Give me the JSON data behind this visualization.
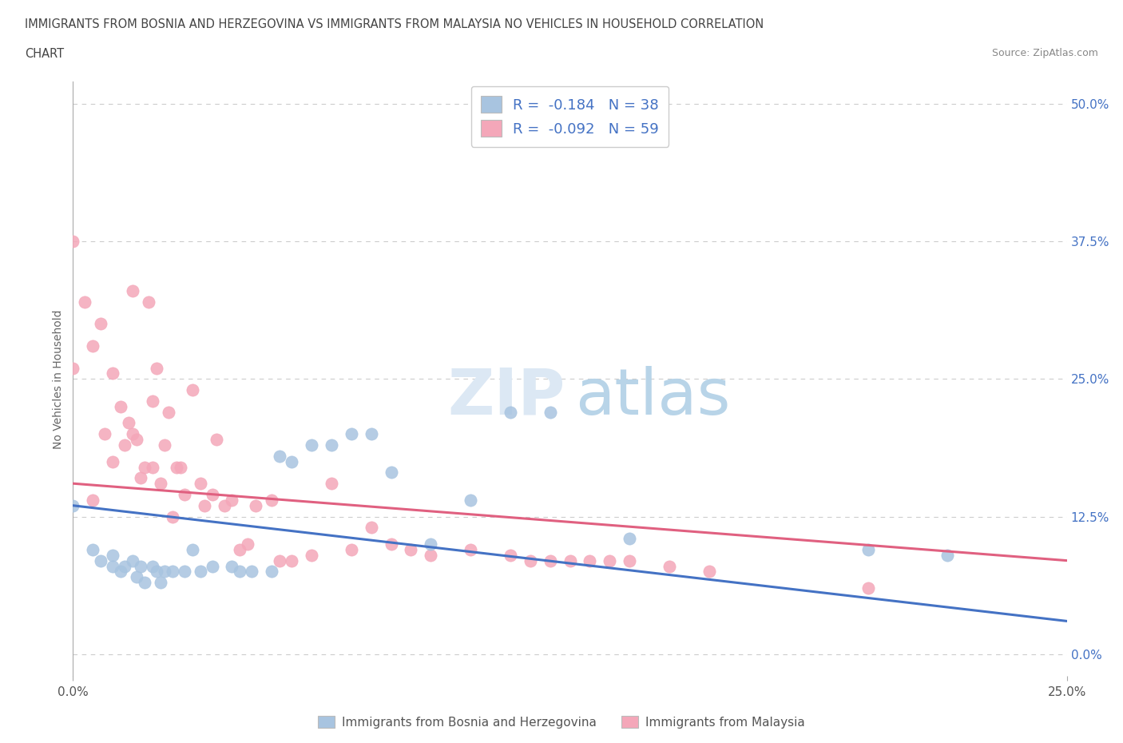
{
  "title_line1": "IMMIGRANTS FROM BOSNIA AND HERZEGOVINA VS IMMIGRANTS FROM MALAYSIA NO VEHICLES IN HOUSEHOLD CORRELATION",
  "title_line2": "CHART",
  "source": "Source: ZipAtlas.com",
  "ylabel": "No Vehicles in Household",
  "xlim": [
    0.0,
    0.25
  ],
  "ylim": [
    -0.02,
    0.52
  ],
  "y_ticks_right": [
    0.0,
    0.125,
    0.25,
    0.375,
    0.5
  ],
  "bosnia_color": "#a8c4e0",
  "malaysia_color": "#f4a7b9",
  "bosnia_line_color": "#4472c4",
  "malaysia_line_color": "#e06080",
  "R_bosnia": -0.184,
  "N_bosnia": 38,
  "R_malaysia": -0.092,
  "N_malaysia": 59,
  "watermark_color": "#dce8f4",
  "grid_color": "#cccccc",
  "bosnia_scatter_x": [
    0.0,
    0.005,
    0.007,
    0.01,
    0.01,
    0.012,
    0.013,
    0.015,
    0.016,
    0.017,
    0.018,
    0.02,
    0.021,
    0.022,
    0.023,
    0.025,
    0.028,
    0.03,
    0.032,
    0.035,
    0.04,
    0.042,
    0.045,
    0.05,
    0.052,
    0.055,
    0.06,
    0.065,
    0.07,
    0.075,
    0.08,
    0.09,
    0.1,
    0.11,
    0.12,
    0.14,
    0.2,
    0.22
  ],
  "bosnia_scatter_y": [
    0.135,
    0.095,
    0.085,
    0.09,
    0.08,
    0.075,
    0.08,
    0.085,
    0.07,
    0.08,
    0.065,
    0.08,
    0.075,
    0.065,
    0.075,
    0.075,
    0.075,
    0.095,
    0.075,
    0.08,
    0.08,
    0.075,
    0.075,
    0.075,
    0.18,
    0.175,
    0.19,
    0.19,
    0.2,
    0.2,
    0.165,
    0.1,
    0.14,
    0.22,
    0.22,
    0.105,
    0.095,
    0.09
  ],
  "malaysia_scatter_x": [
    0.0,
    0.0,
    0.003,
    0.005,
    0.005,
    0.007,
    0.008,
    0.01,
    0.01,
    0.012,
    0.013,
    0.014,
    0.015,
    0.015,
    0.016,
    0.017,
    0.018,
    0.019,
    0.02,
    0.02,
    0.021,
    0.022,
    0.023,
    0.024,
    0.025,
    0.026,
    0.027,
    0.028,
    0.03,
    0.032,
    0.033,
    0.035,
    0.036,
    0.038,
    0.04,
    0.042,
    0.044,
    0.046,
    0.05,
    0.052,
    0.055,
    0.06,
    0.065,
    0.07,
    0.075,
    0.08,
    0.085,
    0.09,
    0.1,
    0.11,
    0.115,
    0.12,
    0.125,
    0.13,
    0.135,
    0.14,
    0.15,
    0.16,
    0.2
  ],
  "malaysia_scatter_y": [
    0.375,
    0.26,
    0.32,
    0.14,
    0.28,
    0.3,
    0.2,
    0.255,
    0.175,
    0.225,
    0.19,
    0.21,
    0.33,
    0.2,
    0.195,
    0.16,
    0.17,
    0.32,
    0.17,
    0.23,
    0.26,
    0.155,
    0.19,
    0.22,
    0.125,
    0.17,
    0.17,
    0.145,
    0.24,
    0.155,
    0.135,
    0.145,
    0.195,
    0.135,
    0.14,
    0.095,
    0.1,
    0.135,
    0.14,
    0.085,
    0.085,
    0.09,
    0.155,
    0.095,
    0.115,
    0.1,
    0.095,
    0.09,
    0.095,
    0.09,
    0.085,
    0.085,
    0.085,
    0.085,
    0.085,
    0.085,
    0.08,
    0.075,
    0.06
  ]
}
